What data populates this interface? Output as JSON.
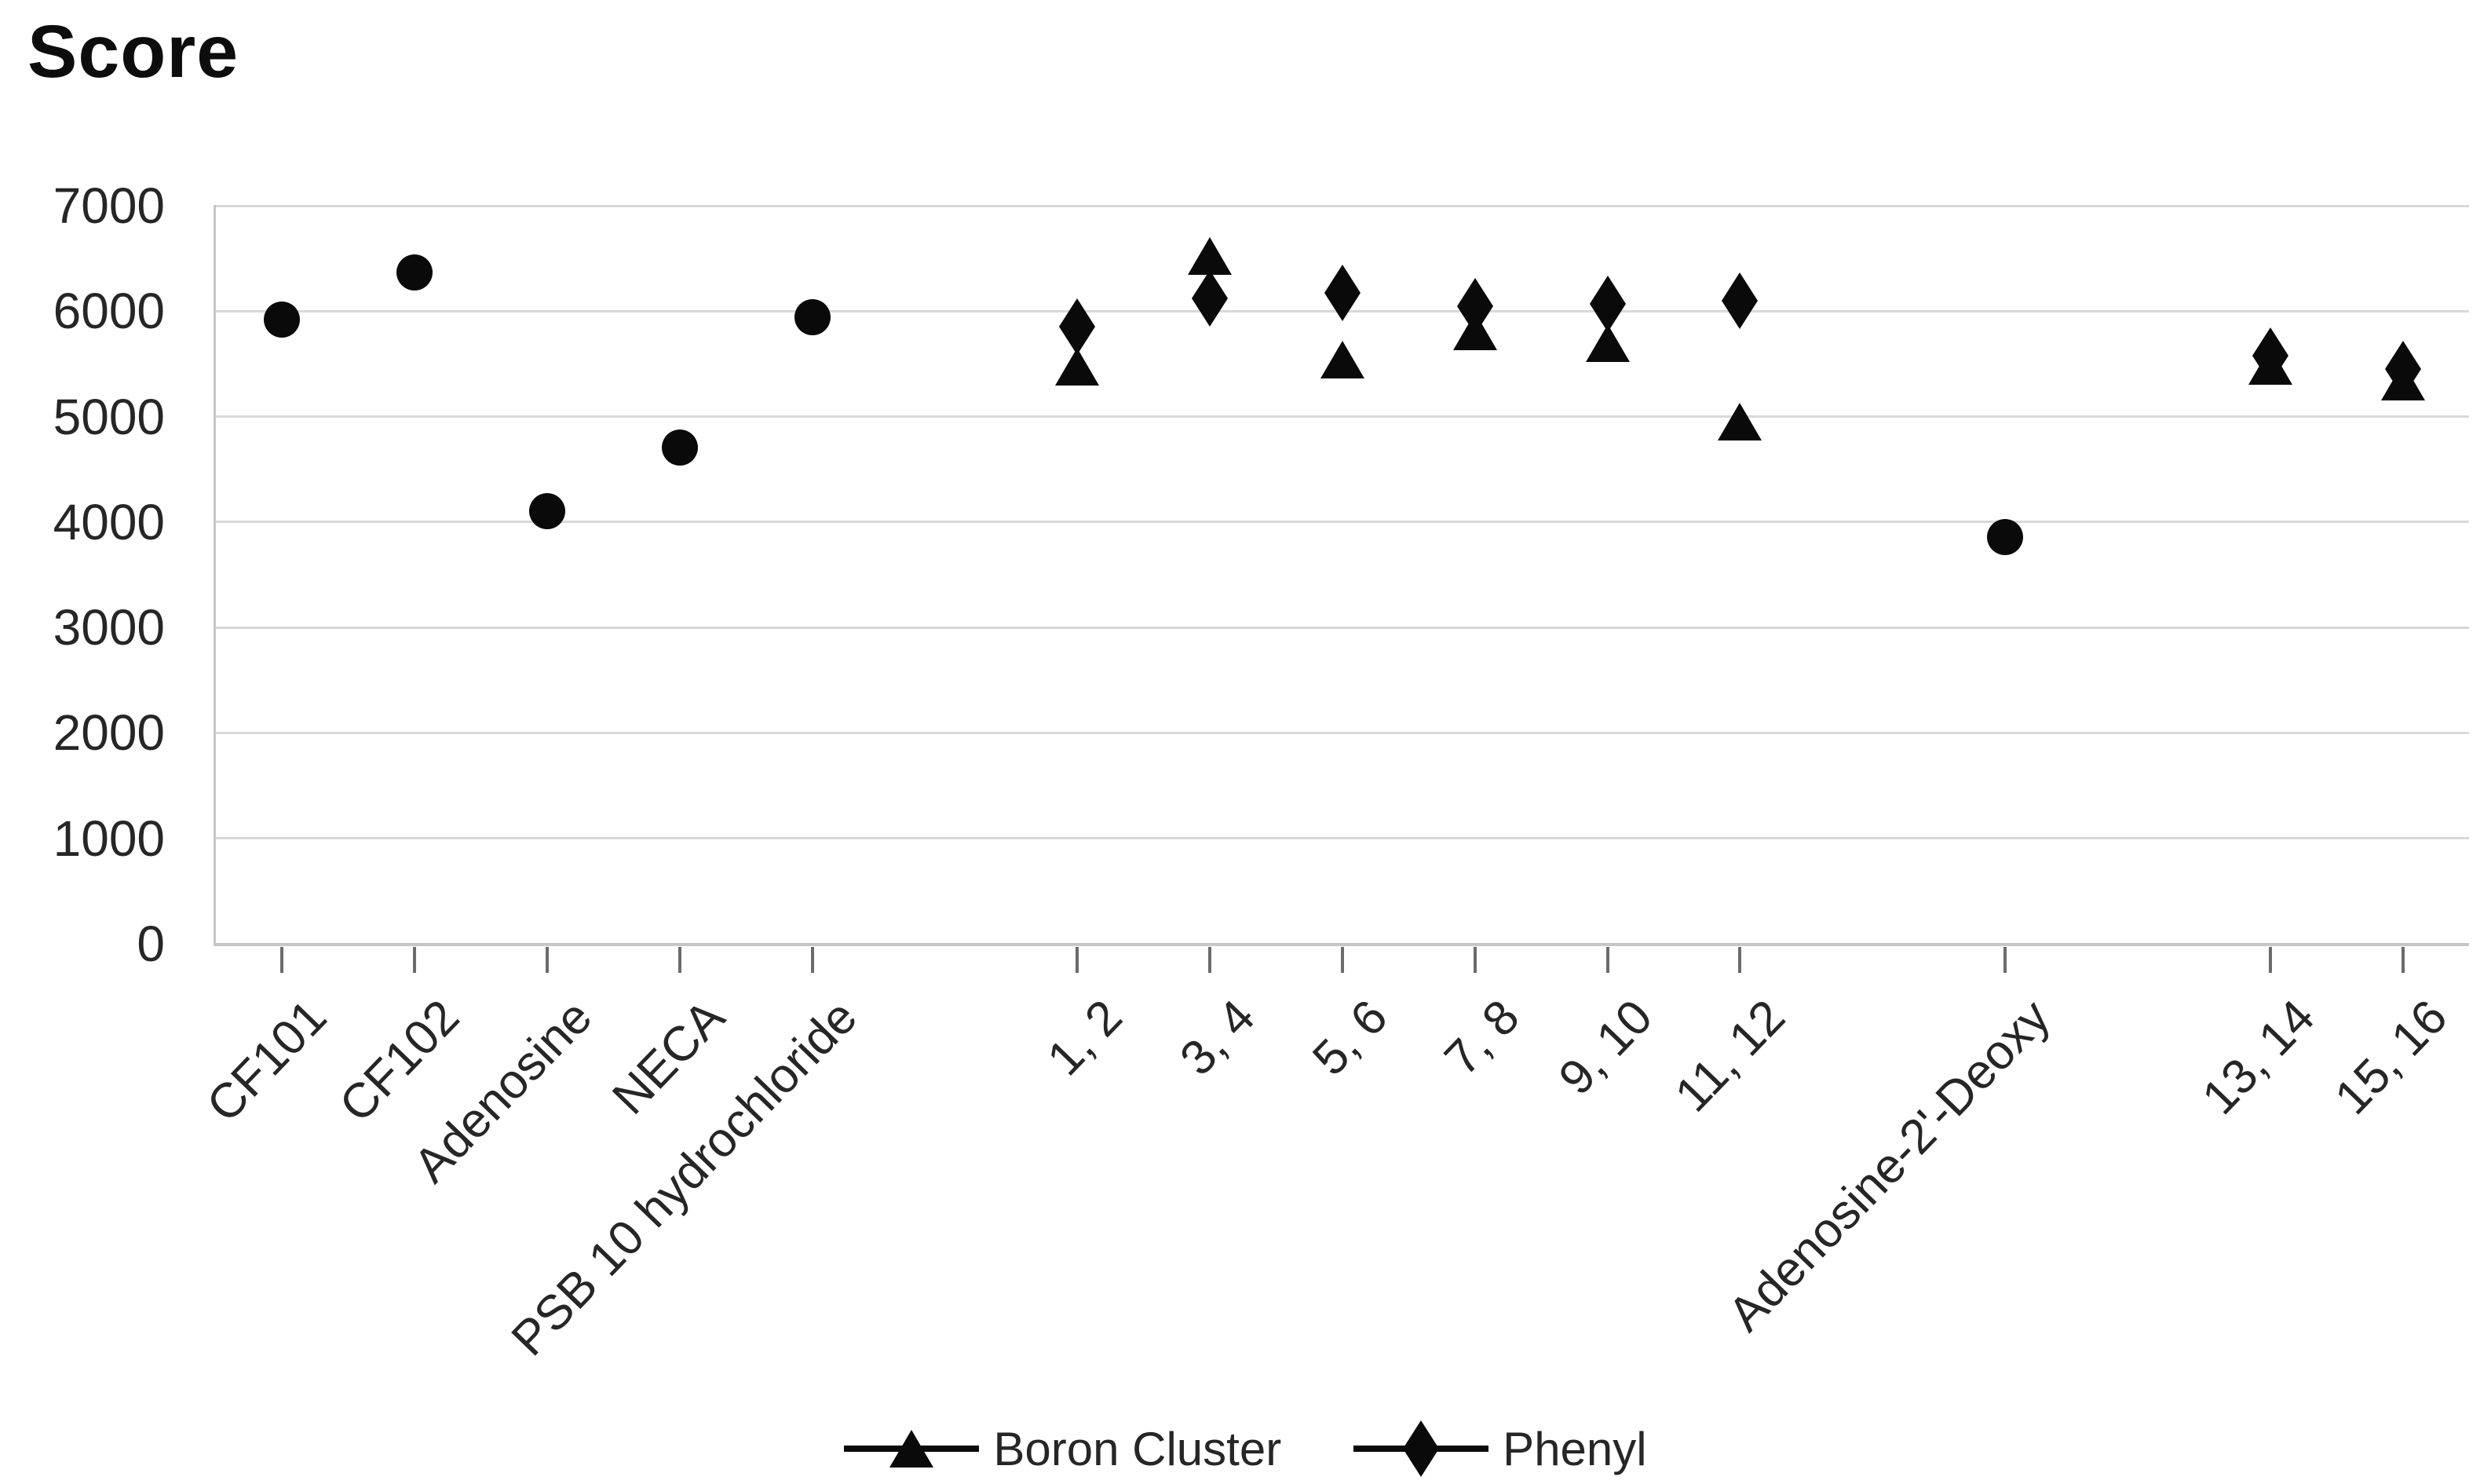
{
  "title": "Score",
  "colors": {
    "marker": "#0a0a0a",
    "gridline": "#d9d9d9",
    "axis_line": "#c6c6c6",
    "tick": "#6b6b6b",
    "label_text": "#262626",
    "title_text": "#0d0d0d"
  },
  "chart_data": {
    "type": "scatter",
    "title": "Score",
    "ylabel": "Score",
    "y_axis": {
      "min": 0,
      "max": 7000,
      "tick_step": 1000,
      "tick_labels": [
        "0",
        "1000",
        "2000",
        "3000",
        "4000",
        "5000",
        "6000",
        "7000"
      ]
    },
    "grid": "horizontal",
    "legend_position": "bottom",
    "x_axis": {
      "slot_count": 17,
      "note": "empty slots 6, 13 and 15 create visual gaps between compound groups"
    },
    "legend": [
      {
        "label": "Boron Cluster",
        "marker": "triangle"
      },
      {
        "label": "Phenyl",
        "marker": "diamond"
      }
    ],
    "categories": [
      {
        "label": "CF101",
        "slot": 1
      },
      {
        "label": "CF102",
        "slot": 2
      },
      {
        "label": "Adenosine",
        "slot": 3
      },
      {
        "label": "NECA",
        "slot": 4
      },
      {
        "label": "PSB 10 hydrochloride",
        "slot": 5
      },
      {
        "label": "1, 2",
        "slot": 7
      },
      {
        "label": "3, 4",
        "slot": 8
      },
      {
        "label": "5, 6",
        "slot": 9
      },
      {
        "label": "7, 8",
        "slot": 10
      },
      {
        "label": "9, 10",
        "slot": 11
      },
      {
        "label": "11, 12",
        "slot": 12
      },
      {
        "label": "Adenosine-2'-Deoxy",
        "slot": 14
      },
      {
        "label": "13, 14",
        "slot": 16
      },
      {
        "label": "15, 16",
        "slot": 17
      }
    ],
    "series": [
      {
        "name": "Reference compounds",
        "marker": "circle",
        "in_legend": false,
        "points": [
          {
            "category": "CF101",
            "value": 5920
          },
          {
            "category": "CF102",
            "value": 6370
          },
          {
            "category": "Adenosine",
            "value": 4100
          },
          {
            "category": "NECA",
            "value": 4710
          },
          {
            "category": "PSB 10 hydrochloride",
            "value": 5940
          },
          {
            "category": "Adenosine-2'-Deoxy",
            "value": 3860
          }
        ]
      },
      {
        "name": "Boron Cluster",
        "marker": "triangle",
        "in_legend": true,
        "points": [
          {
            "category": "1, 2",
            "value": 5470
          },
          {
            "category": "3, 4",
            "value": 6520
          },
          {
            "category": "5, 6",
            "value": 5540
          },
          {
            "category": "7, 8",
            "value": 5810
          },
          {
            "category": "9, 10",
            "value": 5700
          },
          {
            "category": "11, 12",
            "value": 4950
          },
          {
            "category": "13, 14",
            "value": 5480
          },
          {
            "category": "15, 16",
            "value": 5330
          }
        ]
      },
      {
        "name": "Phenyl",
        "marker": "diamond",
        "in_legend": true,
        "points": [
          {
            "category": "1, 2",
            "value": 5850
          },
          {
            "category": "3, 4",
            "value": 6120
          },
          {
            "category": "5, 6",
            "value": 6170
          },
          {
            "category": "7, 8",
            "value": 6050
          },
          {
            "category": "9, 10",
            "value": 6070
          },
          {
            "category": "11, 12",
            "value": 6100
          },
          {
            "category": "13, 14",
            "value": 5580
          },
          {
            "category": "15, 16",
            "value": 5450
          }
        ]
      }
    ]
  }
}
